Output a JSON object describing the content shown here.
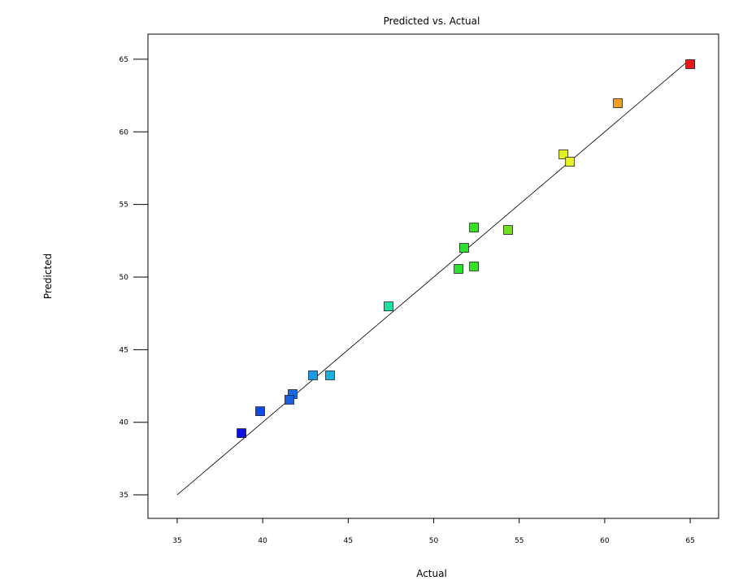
{
  "chart_data": {
    "type": "scatter",
    "title": "Predicted vs. Actual",
    "x_label": "Actual",
    "y_label": "Predicted",
    "x": [
      38.76,
      39.85,
      41.75,
      41.56,
      42.94,
      43.94,
      47.36,
      51.45,
      51.78,
      52.36,
      52.36,
      54.35,
      57.59,
      57.97,
      60.77,
      65.0
    ],
    "series": [
      {
        "name": "Predicted",
        "values": [
          39.25,
          40.76,
          41.94,
          41.55,
          43.23,
          43.23,
          47.98,
          50.56,
          52.01,
          50.73,
          53.41,
          53.24,
          58.45,
          57.94,
          61.97,
          64.66
        ],
        "colors": [
          "#1010e0",
          "#1048e8",
          "#1a6ae8",
          "#1a60e0",
          "#1a9ae8",
          "#1ab0e0",
          "#20e0a0",
          "#30e030",
          "#30e030",
          "#38e028",
          "#38e028",
          "#70e020",
          "#e0f020",
          "#e8f020",
          "#f0a020",
          "#e81818"
        ]
      }
    ],
    "reference_line": {
      "x": [
        35,
        65
      ],
      "y": [
        35,
        65
      ]
    },
    "xlim": [
      33.29,
      66.66
    ],
    "ylim": [
      33.38,
      66.73
    ],
    "xticks": [
      35,
      40,
      45,
      50,
      55,
      60,
      65
    ],
    "yticks": [
      35,
      40,
      45,
      50,
      55,
      60,
      65
    ]
  }
}
